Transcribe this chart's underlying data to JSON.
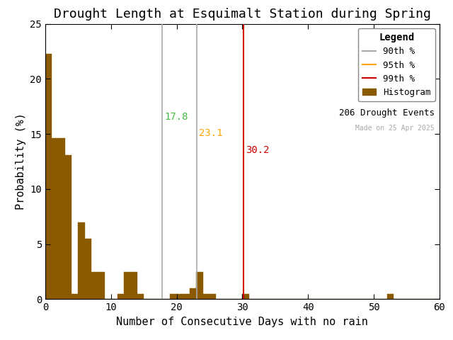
{
  "title": "Drought Length at Esquimalt Station during Spring",
  "xlabel": "Number of Consecutive Days with no rain",
  "ylabel": "Probability (%)",
  "xlim": [
    0,
    60
  ],
  "ylim": [
    0,
    25
  ],
  "xticks": [
    0,
    10,
    20,
    30,
    40,
    50,
    60
  ],
  "yticks": [
    0,
    5,
    10,
    15,
    20,
    25
  ],
  "bar_color": "#8B5A00",
  "bar_edgecolor": "#8B5A00",
  "background_color": "#ffffff",
  "bin_width": 1,
  "bar_heights": [
    22.3,
    14.6,
    14.6,
    13.1,
    0.5,
    7.0,
    5.5,
    2.5,
    2.5,
    0.0,
    0.0,
    0.5,
    2.5,
    2.5,
    0.5,
    0.0,
    0.0,
    0.0,
    0.0,
    0.5,
    0.5,
    0.5,
    1.0,
    2.5,
    0.5,
    0.5,
    0.0,
    0.0,
    0.0,
    0.0,
    0.5,
    0.0,
    0.0,
    0.0,
    0.0,
    0.0,
    0.0,
    0.0,
    0.0,
    0.0,
    0.0,
    0.0,
    0.0,
    0.0,
    0.0,
    0.0,
    0.0,
    0.0,
    0.0,
    0.0,
    0.0,
    0.0,
    0.5,
    0.0,
    0.0,
    0.0,
    0.0,
    0.0,
    0.0,
    0.0
  ],
  "vline_90": 17.8,
  "vline_95": 23.1,
  "vline_99": 30.2,
  "vline_90_color": "#aaaaaa",
  "vline_95_color": "#aaaaaa",
  "vline_99_color": "#cc0000",
  "label_90_color": "#44bb44",
  "label_95_color": "#ffa500",
  "label_99_color": "#cc0000",
  "legend_line_90_color": "#aaaaaa",
  "legend_line_95_color": "#ffa500",
  "legend_line_99_color": "#cc0000",
  "legend_title": "Legend",
  "legend_90_label": "90th %",
  "legend_95_label": "95th %",
  "legend_99_label": "99th %",
  "legend_hist_label": "Histogram",
  "n_events_label": "206 Drought Events",
  "made_on_label": "Made on 25 Apr 2025",
  "made_on_color": "#aaaaaa",
  "title_fontsize": 13,
  "axis_fontsize": 11,
  "legend_fontsize": 9,
  "annotation_fontsize": 10
}
